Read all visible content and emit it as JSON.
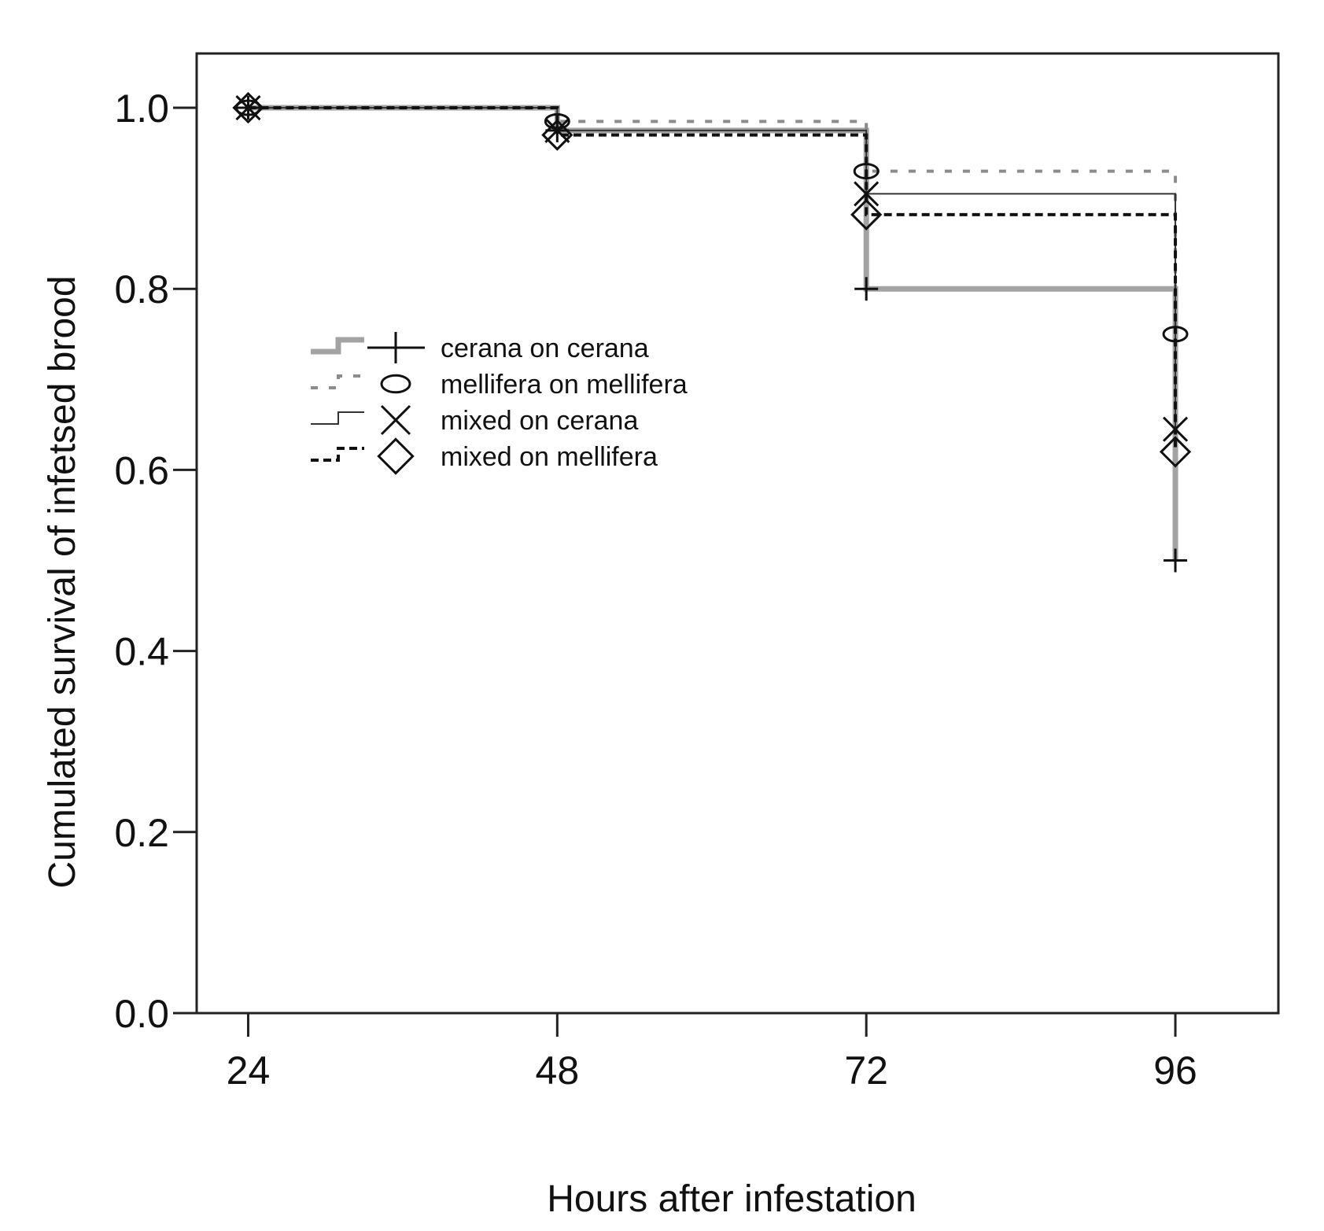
{
  "chart_data": {
    "type": "line",
    "step": true,
    "title": "",
    "xlabel": "Hours after infestation",
    "ylabel": "Cumulated survival of infetsed brood",
    "x_ticks": [
      "24",
      "48",
      "72",
      "96"
    ],
    "y_ticks": [
      "0.0",
      "0.2",
      "0.4",
      "0.6",
      "0.8",
      "1.0"
    ],
    "xlim": [
      20,
      104
    ],
    "ylim": [
      0,
      1.06
    ],
    "grid": false,
    "legend_position": "center-left",
    "series": [
      {
        "name": "cerana on cerana",
        "line_style": "thick-solid-gray",
        "marker": "plus",
        "color": "#a3a3a3",
        "marker_color": "#111111",
        "x": [
          24,
          48,
          72,
          96
        ],
        "y": [
          1.0,
          0.975,
          0.8,
          0.5
        ]
      },
      {
        "name": "mellifera on mellifera",
        "line_style": "dotted-gray",
        "marker": "ellipse",
        "color": "#8c8c8c",
        "marker_color": "#111111",
        "x": [
          24,
          48,
          72,
          96
        ],
        "y": [
          1.0,
          0.985,
          0.93,
          0.75
        ]
      },
      {
        "name": "mixed on cerana",
        "line_style": "thin-solid",
        "marker": "x",
        "color": "#333333",
        "marker_color": "#111111",
        "x": [
          24,
          48,
          72,
          96
        ],
        "y": [
          1.0,
          0.975,
          0.905,
          0.645
        ]
      },
      {
        "name": "mixed on mellifera",
        "line_style": "dashed-black",
        "marker": "diamond",
        "color": "#111111",
        "marker_color": "#111111",
        "x": [
          24,
          48,
          72,
          96
        ],
        "y": [
          1.0,
          0.97,
          0.882,
          0.62
        ]
      }
    ]
  }
}
